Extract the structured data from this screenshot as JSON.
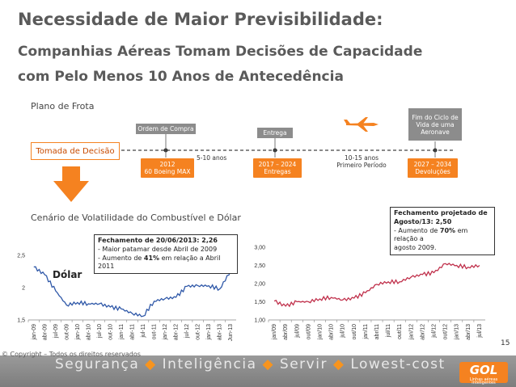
{
  "title": {
    "line1": "Necessidade de Maior Previsibilidade:",
    "line2": "Companhias Aéreas Tomam Decisões de Capacidade",
    "line3": "com Pelo Menos 10 Anos de Antecedência"
  },
  "plano": {
    "heading": "Plano de Frota",
    "tomada": "Tomada de Decisão",
    "ordem": "Ordem de Compra",
    "entrega": "Entrega",
    "fim_l1": "Fim do Ciclo de",
    "fim_l2": "Vida de uma",
    "fim_l3": "Aeronave",
    "box2012_l1": "2012",
    "box2012_l2": "60 Boeing MAX",
    "anos_5_10": "5-10 anos",
    "box2017_l1": "2017 – 2024",
    "box2017_l2": "Entregas",
    "anos_10_15_l1": "10-15 anos",
    "anos_10_15_l2": "Primeiro Período",
    "box2027_l1": "2027 – 2034",
    "box2027_l2": "Devoluções"
  },
  "cenario": {
    "heading": "Cenário de Volatilidade do Combustível e Dólar"
  },
  "callouts": {
    "dolar_title": "Fechamento de 20/06/2013: 2,26",
    "dolar_line1": "- Maior patamar desde Abril de 2009",
    "dolar_line2_pre": "- Aumento de ",
    "dolar_line2_bold": "41%",
    "dolar_line2_post": " em relação a Abril 2011",
    "fuel_title_l1": "Fechamento projetado de",
    "fuel_title_l2": "Agosto/13: 2,50",
    "fuel_line1_pre": "- Aumento de ",
    "fuel_line1_bold": "70%",
    "fuel_line1_post": " em relação a",
    "fuel_line2": "agosto 2009."
  },
  "footer": {
    "copyright": "© Copyright – Todos os direitos reservados",
    "w1": "Segurança",
    "w2": "Inteligência",
    "w3": "Servir",
    "w4": "Lowest-cost",
    "sep": "◆",
    "logo": "GOL",
    "logo_tag": "Linhas aéreas inteligentes",
    "page": "15"
  },
  "colors": {
    "accent": "#f58220",
    "dolar_line": "#2f58a8",
    "fuel_line": "#c0304b"
  },
  "chart_data": [
    {
      "type": "line",
      "label": "Dólar",
      "categories": [
        "jan-09",
        "abr-09",
        "jul-09",
        "out-09",
        "jan-10",
        "abr-10",
        "jul-10",
        "out-10",
        "jan-11",
        "abr-11",
        "jul-11",
        "out-11",
        "jan-12",
        "abr-12",
        "jul-12",
        "out-12",
        "jan-13",
        "abr-13",
        "Jun-13"
      ],
      "values": [
        2.32,
        2.2,
        1.95,
        1.73,
        1.77,
        1.75,
        1.75,
        1.7,
        1.67,
        1.6,
        1.56,
        1.79,
        1.83,
        1.85,
        2.02,
        2.03,
        2.03,
        1.98,
        2.26
      ],
      "yticks": [
        "1,5",
        "2",
        "2,5"
      ],
      "ylim": [
        1.5,
        2.5
      ]
    },
    {
      "type": "line",
      "categories": [
        "jan/09",
        "abr/09",
        "jul/09",
        "out/09",
        "jan/10",
        "abr/10",
        "jul/10",
        "out/10",
        "jan/11",
        "abr/11",
        "jul/11",
        "out/11",
        "jan/12",
        "abr/12",
        "jul/12",
        "out/12",
        "jan/13",
        "abr/13",
        "jul/13"
      ],
      "values": [
        1.52,
        1.38,
        1.5,
        1.5,
        1.58,
        1.62,
        1.55,
        1.6,
        1.75,
        1.98,
        2.05,
        2.05,
        2.18,
        2.25,
        2.3,
        2.55,
        2.5,
        2.45,
        2.5
      ],
      "yticks": [
        "1,00",
        "1,50",
        "2,00",
        "2,50",
        "3,00"
      ],
      "ylim": [
        1.0,
        3.0
      ]
    }
  ]
}
